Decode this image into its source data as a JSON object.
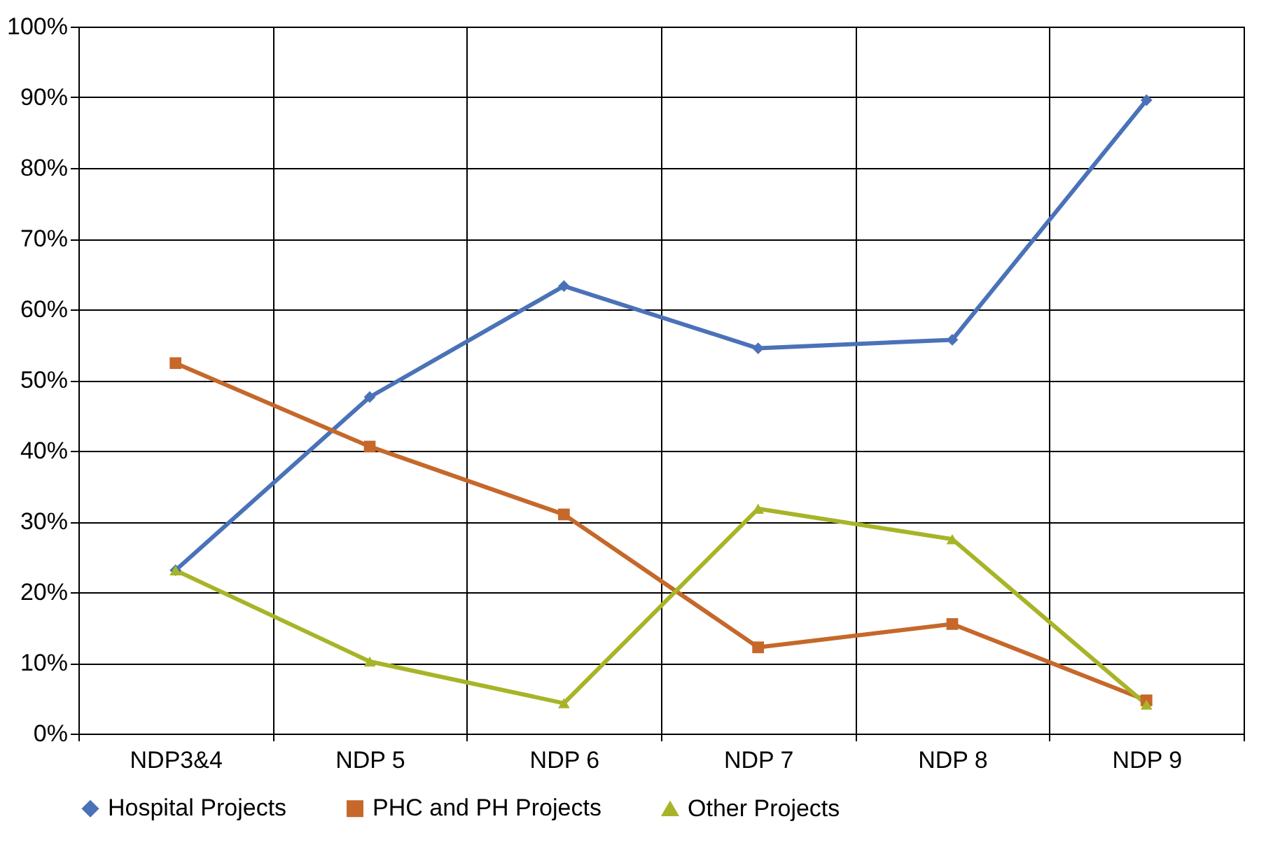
{
  "chart_data": {
    "type": "line",
    "categories": [
      "NDP3&4",
      "NDP 5",
      "NDP 6",
      "NDP 7",
      "NDP 8",
      "NDP 9"
    ],
    "series": [
      {
        "name": "Hospital Projects",
        "color": "#4a72b8",
        "marker": "diamond",
        "values": [
          23.1,
          47.6,
          63.3,
          54.5,
          55.7,
          89.6
        ]
      },
      {
        "name": "PHC and PH Projects",
        "color": "#c5682a",
        "marker": "square",
        "values": [
          52.4,
          40.6,
          31.0,
          12.2,
          15.5,
          4.7
        ]
      },
      {
        "name": "Other Projects",
        "color": "#a8b428",
        "marker": "triangle",
        "values": [
          23.1,
          10.2,
          4.3,
          31.8,
          27.5,
          4.1
        ]
      }
    ],
    "ylim": [
      0,
      100
    ],
    "yticks": [
      {
        "value": 0,
        "label": "0%"
      },
      {
        "value": 10,
        "label": "10%"
      },
      {
        "value": 20,
        "label": "20%"
      },
      {
        "value": 30,
        "label": "30%"
      },
      {
        "value": 40,
        "label": "40%"
      },
      {
        "value": 50,
        "label": "50%"
      },
      {
        "value": 60,
        "label": "60%"
      },
      {
        "value": 70,
        "label": "70%"
      },
      {
        "value": 80,
        "label": "80%"
      },
      {
        "value": 90,
        "label": "90%"
      },
      {
        "value": 100,
        "label": "100%"
      }
    ],
    "grid": true,
    "legend": "bottom",
    "line_style": "solid"
  }
}
